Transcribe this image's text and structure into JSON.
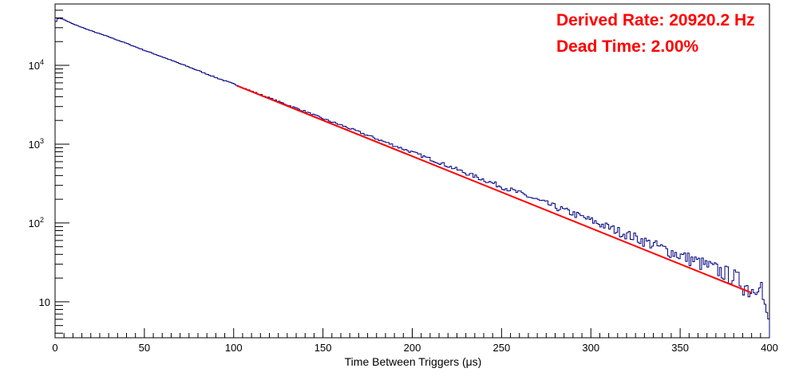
{
  "chart_data": {
    "type": "line",
    "title": "",
    "xlabel": "Time Between Triggers (μs)",
    "ylabel": "",
    "xlim": [
      0,
      400
    ],
    "ylim": [
      3.5,
      60000
    ],
    "y_scale": "log",
    "grid": false,
    "x_ticks": [
      "0",
      "50",
      "100",
      "150",
      "200",
      "250",
      "300",
      "350",
      "400"
    ],
    "y_ticks": [
      {
        "value": 10,
        "label": "10"
      },
      {
        "value": 100,
        "label": "10",
        "exp": "2"
      },
      {
        "value": 1000,
        "label": "10",
        "exp": "3"
      },
      {
        "value": 10000,
        "label": "10",
        "exp": "4"
      }
    ],
    "series": [
      {
        "kind": "histogram",
        "color": "#000080",
        "x": [
          0,
          2,
          5,
          10,
          20,
          30,
          40,
          50,
          60,
          70,
          80,
          90,
          100,
          110,
          120,
          130,
          140,
          150,
          160,
          170,
          180,
          190,
          200,
          210,
          220,
          230,
          240,
          250,
          260,
          270,
          280,
          290,
          300,
          310,
          320,
          330,
          340,
          350,
          360,
          370,
          380,
          390,
          395,
          398,
          400
        ],
        "values": [
          35000,
          40000,
          38000,
          33500,
          27500,
          23000,
          19000,
          15500,
          12800,
          10500,
          8600,
          7000,
          5800,
          4700,
          3850,
          3150,
          2600,
          2100,
          1750,
          1430,
          1170,
          960,
          790,
          650,
          530,
          430,
          355,
          290,
          240,
          196,
          160,
          132,
          108,
          88,
          72,
          59,
          48,
          39,
          32,
          26,
          21,
          14,
          20,
          6,
          6
        ]
      },
      {
        "kind": "fit",
        "color": "#ff0000",
        "x": [
          102,
          390
        ],
        "values": [
          5500,
          13
        ]
      }
    ],
    "annotations": [
      {
        "text": "Derived Rate: 20920.2 Hz",
        "color": "#ff0000"
      },
      {
        "text": "Dead Time: 2.00%",
        "color": "#ff0000"
      }
    ]
  }
}
